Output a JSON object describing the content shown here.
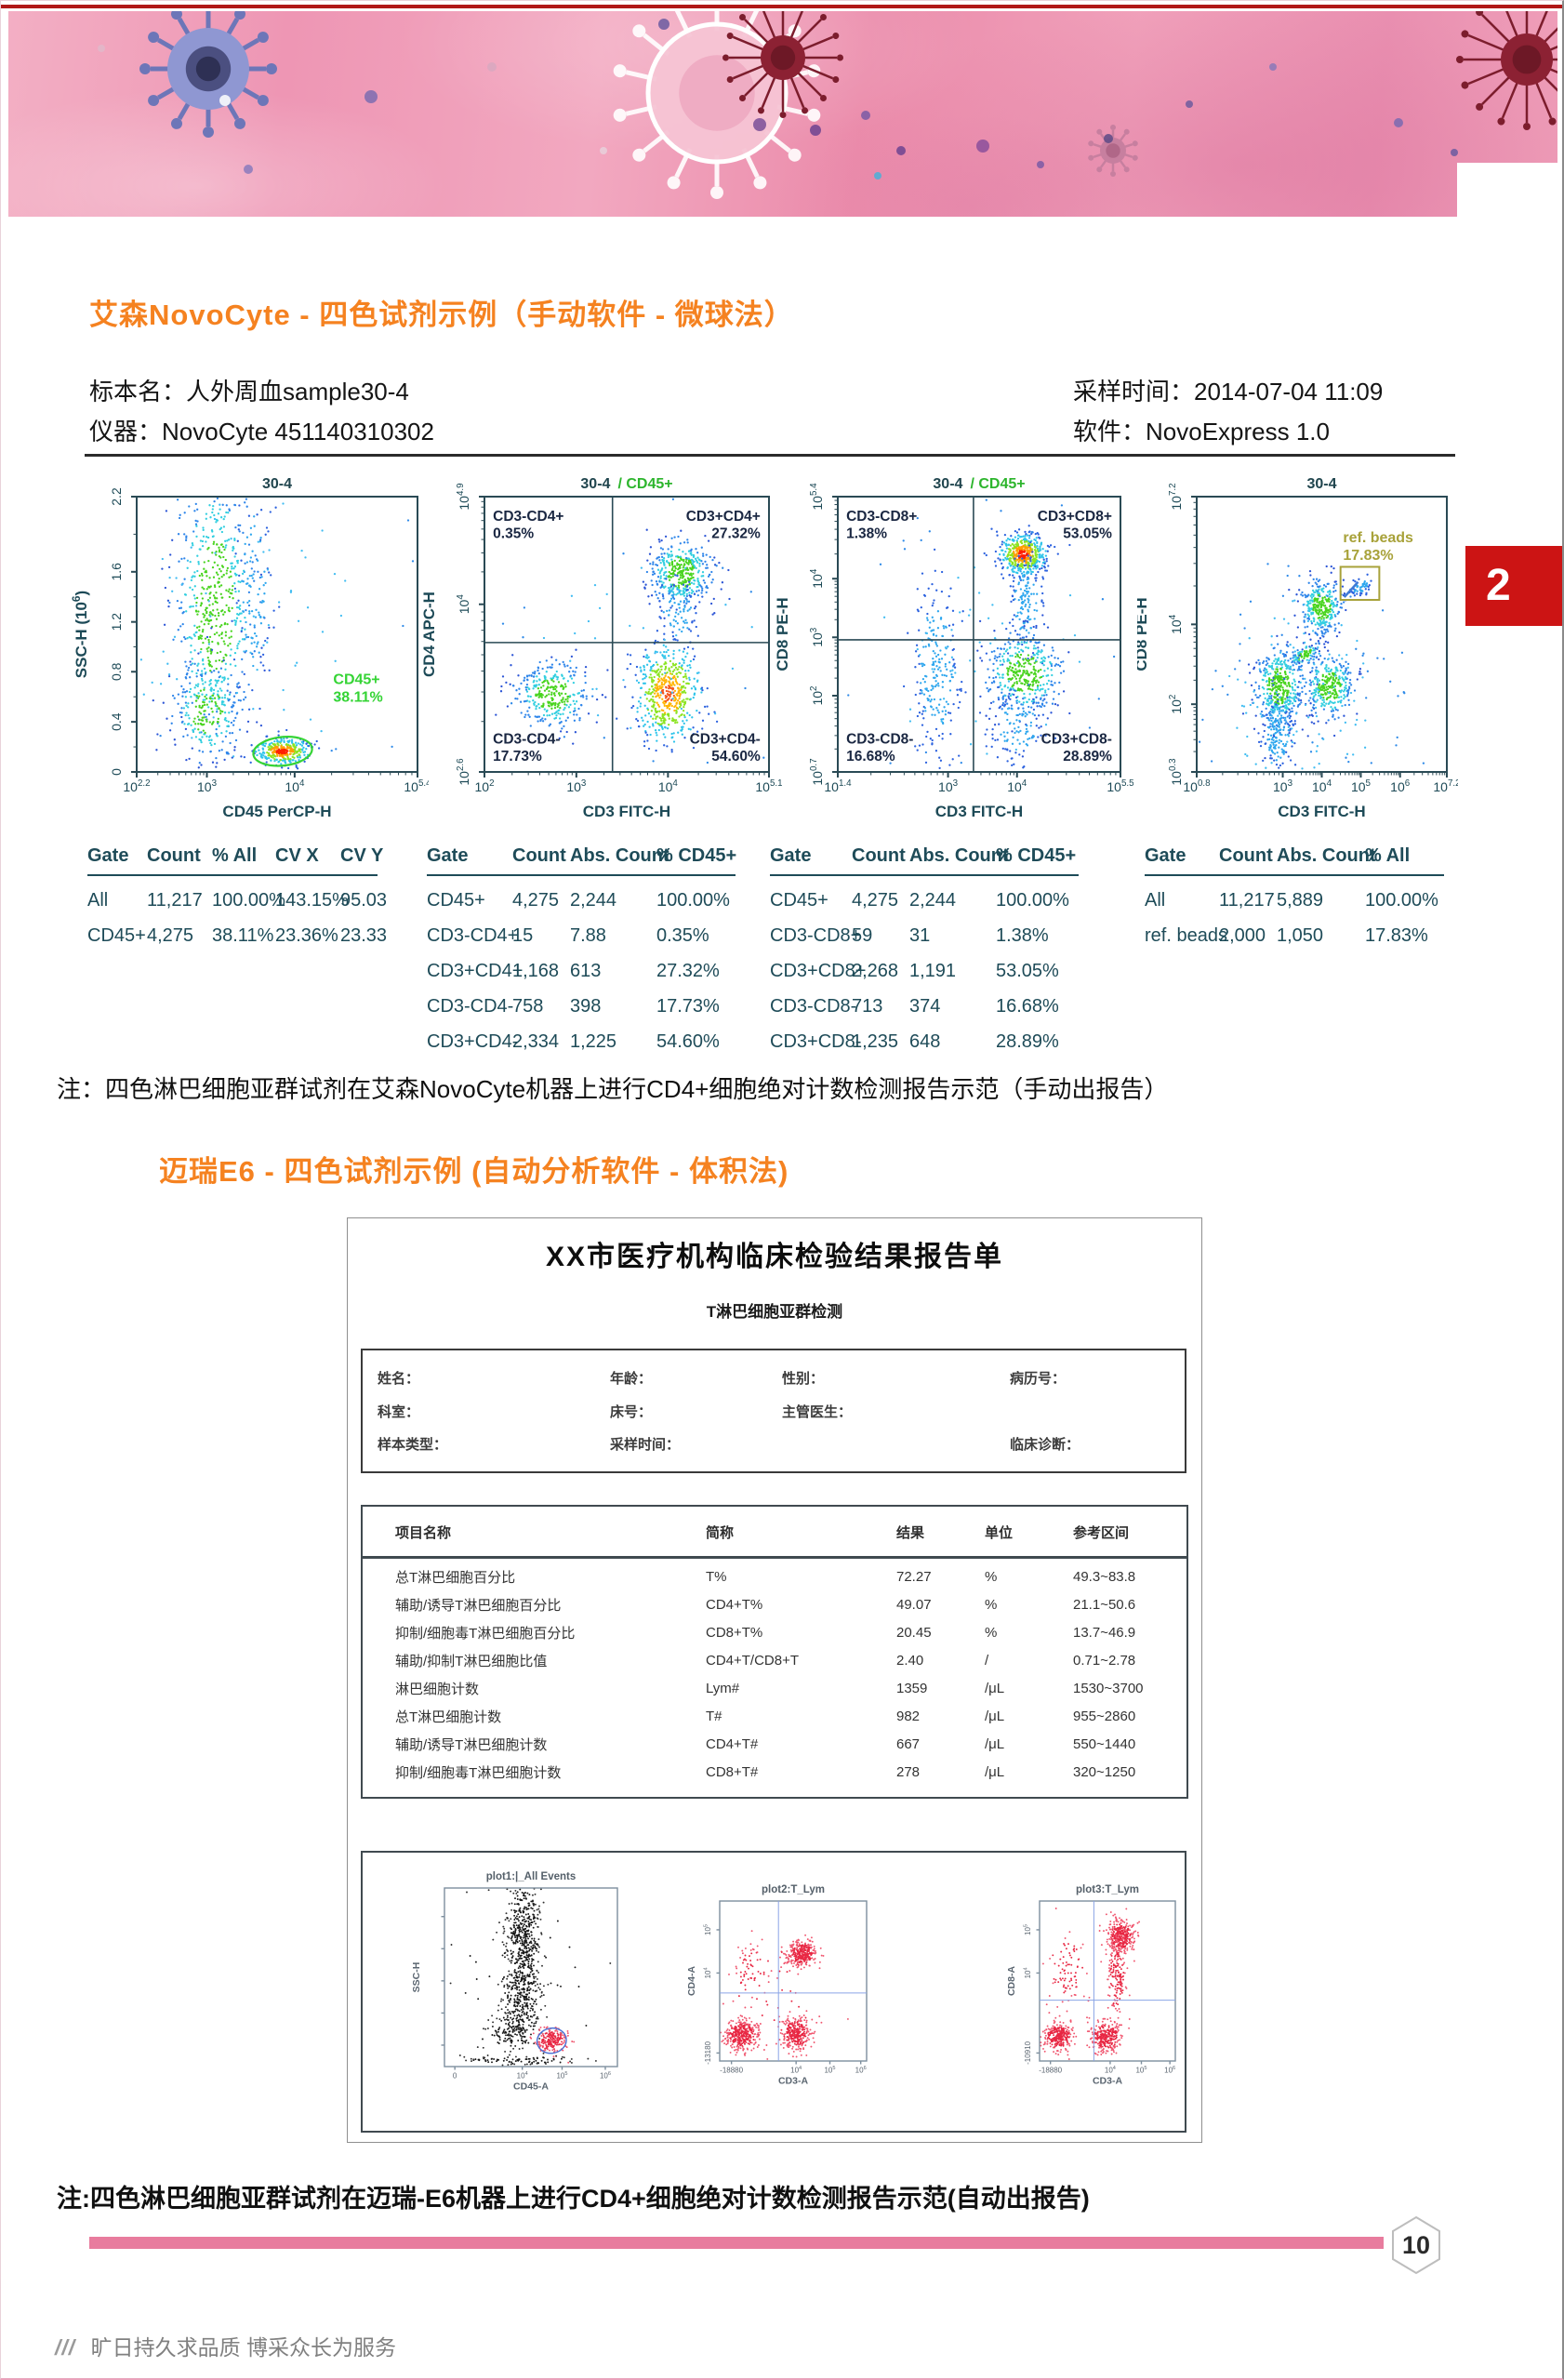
{
  "page": {
    "section1_title": "艾森NovoCyte - 四色试剂示例（手动软件 - 微球法）",
    "section2_title": "迈瑞E6 - 四色试剂示例 (自动分析软件 - 体积法)",
    "note1": "注：四色淋巴细胞亚群试剂在艾森NovoCyte机器上进行CD4+细胞绝对计数检测报告示范（手动出报告）",
    "note2": "注:四色淋巴细胞亚群试剂在迈瑞-E6机器上进行CD4+细胞绝对计数检测报告示范(自动出报告)",
    "page_number": "10",
    "chapter_tab": "2",
    "footer_slashes": "///",
    "footer_slogan": "旷日持久求品质 博采众长为服务"
  },
  "sample": {
    "specimen": "标本名：人外周血sample30-4",
    "instrument": "仪器：NovoCyte 451140310302",
    "sampling_time": "采样时间：2014-07-04 11:09",
    "software": "软件：NovoExpress 1.0"
  },
  "colors": {
    "accent_orange": "#f58220",
    "bar_pink": "#e87c9e",
    "tab_red": "#cc1414",
    "table_teal": "#1e4b58",
    "gate_green": "#35d435",
    "beads_olive": "#a8a23a"
  },
  "gate_tables": [
    {
      "columns": [
        "Gate",
        "Count",
        "% All",
        "CV X",
        "CV Y"
      ],
      "rows": [
        [
          "All",
          "11,217",
          "100.00%",
          "143.15%",
          "95.03"
        ],
        [
          "CD45+",
          "4,275",
          "38.11%",
          "23.36%",
          "23.33"
        ]
      ]
    },
    {
      "columns": [
        "Gate",
        "Count",
        "Abs. Count",
        "% CD45+"
      ],
      "rows": [
        [
          "CD45+",
          "4,275",
          "2,244",
          "100.00%"
        ],
        [
          "CD3-CD4+",
          "15",
          "7.88",
          "0.35%"
        ],
        [
          "CD3+CD4+",
          "1,168",
          "613",
          "27.32%"
        ],
        [
          "CD3-CD4-",
          "758",
          "398",
          "17.73%"
        ],
        [
          "CD3+CD4-",
          "2,334",
          "1,225",
          "54.60%"
        ]
      ]
    },
    {
      "columns": [
        "Gate",
        "Count",
        "Abs. Count",
        "% CD45+"
      ],
      "rows": [
        [
          "CD45+",
          "4,275",
          "2,244",
          "100.00%"
        ],
        [
          "CD3-CD8+",
          "59",
          "31",
          "1.38%"
        ],
        [
          "CD3+CD8+",
          "2,268",
          "1,191",
          "53.05%"
        ],
        [
          "CD3-CD8-",
          "713",
          "374",
          "16.68%"
        ],
        [
          "CD3+CD8-",
          "1,235",
          "648",
          "28.89%"
        ]
      ]
    },
    {
      "columns": [
        "Gate",
        "Count",
        "Abs. Count",
        "% All"
      ],
      "rows": [
        [
          "All",
          "11,217",
          "5,889",
          "100.00%"
        ],
        [
          "ref. beads",
          "2,000",
          "1,050",
          "17.83%"
        ]
      ]
    }
  ],
  "report": {
    "title": "XX市医疗机构临床检验结果报告单",
    "subtitle": "T淋巴细胞亚群检测",
    "patient_fields": [
      [
        "姓名：",
        "年龄：",
        "性别：",
        "病历号："
      ],
      [
        "科室：",
        "床号：",
        "主管医生：",
        ""
      ],
      [
        "样本类型：",
        "采样时间：",
        "",
        "临床诊断："
      ]
    ],
    "result_table": {
      "columns": [
        "项目名称",
        "简称",
        "结果",
        "单位",
        "参考区间"
      ],
      "rows": [
        [
          "总T淋巴细胞百分比",
          "T%",
          "72.27",
          "%",
          "49.3~83.8"
        ],
        [
          "辅助/诱导T淋巴细胞百分比",
          "CD4+T%",
          "49.07",
          "%",
          "21.1~50.6"
        ],
        [
          "抑制/细胞毒T淋巴细胞百分比",
          "CD8+T%",
          "20.45",
          "%",
          "13.7~46.9"
        ],
        [
          "辅助/抑制T淋巴细胞比值",
          "CD4+T/CD8+T",
          "2.40",
          "/",
          "0.71~2.78"
        ],
        [
          "淋巴细胞计数",
          "Lym#",
          "1359",
          "/μL",
          "1530~3700"
        ],
        [
          "总T淋巴细胞计数",
          "T#",
          "982",
          "/μL",
          "955~2860"
        ],
        [
          "辅助/诱导T淋巴细胞计数",
          "CD4+T#",
          "667",
          "/μL",
          "550~1440"
        ],
        [
          "抑制/细胞毒T淋巴细胞计数",
          "CD8+T#",
          "278",
          "/μL",
          "320~1250"
        ]
      ]
    }
  },
  "chart_data": [
    {
      "id": "novocyte-ssc-vs-cd45",
      "type": "scatter",
      "log": true,
      "ylinear": true,
      "title_parts": [
        {
          "text": "30-4",
          "color": "#20454e"
        }
      ],
      "xlabel": "CD45 PerCP-H",
      "ylabel": "SSC-H (10^6)",
      "xticks": [
        {
          "label": "10^2.2",
          "pos": 0.0
        },
        {
          "label": "10^3",
          "pos": 0.25
        },
        {
          "label": "10^4",
          "pos": 0.5625
        },
        {
          "label": "10^5.4",
          "pos": 1.0
        }
      ],
      "yticks": [
        {
          "label": "0",
          "pos": 0.0
        },
        {
          "label": "0.4",
          "pos": 0.182
        },
        {
          "label": "0.8",
          "pos": 0.364
        },
        {
          "label": "1.2",
          "pos": 0.545
        },
        {
          "label": "1.6",
          "pos": 0.727
        },
        {
          "label": "2.2",
          "pos": 1.0
        }
      ],
      "gates": [
        {
          "shape": "ellipse",
          "cx": 0.52,
          "cy": 0.925,
          "rx": 0.105,
          "ry": 0.052,
          "rot": -6,
          "color": "#35d435",
          "label_lines": [
            "CD45+",
            "38.11%"
          ],
          "lx": 0.7,
          "ly": 0.68,
          "label_color": "#35d435"
        }
      ],
      "clusters": [
        {
          "cx": 0.28,
          "cy": 0.4,
          "sx": 0.075,
          "sy": 0.26,
          "n": 600,
          "p": "coolgreen"
        },
        {
          "cx": 0.25,
          "cy": 0.78,
          "sx": 0.06,
          "sy": 0.09,
          "n": 220,
          "p": "coolgreen"
        },
        {
          "cx": 0.42,
          "cy": 0.35,
          "sx": 0.035,
          "sy": 0.22,
          "n": 120,
          "p": "cool"
        },
        {
          "cx": 0.52,
          "cy": 0.925,
          "sx": 0.05,
          "sy": 0.024,
          "n": 340,
          "p": "hot"
        },
        {
          "cx": 0.4,
          "cy": 0.5,
          "sx": 0.3,
          "sy": 0.35,
          "n": 100,
          "p": "sparse"
        }
      ]
    },
    {
      "id": "novocyte-cd4-vs-cd3",
      "type": "scatter",
      "log": true,
      "title_parts": [
        {
          "text": "30-4",
          "color": "#20454e"
        },
        {
          "text": "/ CD45+",
          "color": "#2db52d",
          "dx": 8
        }
      ],
      "xlabel": "CD3 FITC-H",
      "ylabel": "CD4 APC-H",
      "xticks": [
        {
          "label": "10^2",
          "pos": 0.0
        },
        {
          "label": "10^3",
          "pos": 0.323
        },
        {
          "label": "10^4",
          "pos": 0.645
        },
        {
          "label": "10^5.1",
          "pos": 1.0
        }
      ],
      "yticks": [
        {
          "label": "10^2.6",
          "pos": 0.0
        },
        {
          "label": "10^4",
          "pos": 0.609
        },
        {
          "label": "10^4.9",
          "pos": 1.0
        }
      ],
      "quad": {
        "vx": 0.45,
        "hy": 0.53
      },
      "quad_labels": [
        {
          "lines": [
            "CD3-CD4+",
            "0.35%"
          ],
          "x": 0.03,
          "y": 0.035,
          "anchor": "start"
        },
        {
          "lines": [
            "CD3+CD4+",
            "27.32%"
          ],
          "x": 0.97,
          "y": 0.035,
          "anchor": "end"
        },
        {
          "lines": [
            "CD3-CD4-",
            "17.73%"
          ],
          "x": 0.03,
          "y": 0.845,
          "anchor": "start"
        },
        {
          "lines": [
            "CD3+CD4-",
            "54.60%"
          ],
          "x": 0.97,
          "y": 0.845,
          "anchor": "end"
        }
      ],
      "clusters": [
        {
          "cx": 0.69,
          "cy": 0.275,
          "sx": 0.055,
          "sy": 0.06,
          "n": 400,
          "p": "coolgreen"
        },
        {
          "cx": 0.68,
          "cy": 0.42,
          "sx": 0.04,
          "sy": 0.07,
          "n": 90,
          "p": "cool"
        },
        {
          "cx": 0.24,
          "cy": 0.72,
          "sx": 0.065,
          "sy": 0.062,
          "n": 330,
          "p": "coolgreen"
        },
        {
          "cx": 0.645,
          "cy": 0.715,
          "sx": 0.055,
          "sy": 0.085,
          "n": 540,
          "p": "hotorange"
        },
        {
          "cx": 0.55,
          "cy": 0.55,
          "sx": 0.28,
          "sy": 0.22,
          "n": 70,
          "p": "sparse"
        }
      ]
    },
    {
      "id": "novocyte-cd8-vs-cd3",
      "type": "scatter",
      "log": true,
      "title_parts": [
        {
          "text": "30-4",
          "color": "#20454e"
        },
        {
          "text": "/ CD45+",
          "color": "#2db52d",
          "dx": 8
        }
      ],
      "xlabel": "CD3 FITC-H",
      "ylabel": "CD8 PE-H",
      "xticks": [
        {
          "label": "10^1.4",
          "pos": 0.0
        },
        {
          "label": "10^3",
          "pos": 0.39
        },
        {
          "label": "10^4",
          "pos": 0.634
        },
        {
          "label": "10^5.5",
          "pos": 1.0
        }
      ],
      "yticks": [
        {
          "label": "10^0.7",
          "pos": 0.0
        },
        {
          "label": "10^2",
          "pos": 0.277
        },
        {
          "label": "10^3",
          "pos": 0.489
        },
        {
          "label": "10^4",
          "pos": 0.702
        },
        {
          "label": "10^5.4",
          "pos": 1.0
        }
      ],
      "quad": {
        "vx": 0.48,
        "hy": 0.52
      },
      "quad_labels": [
        {
          "lines": [
            "CD3-CD8+",
            "1.38%"
          ],
          "x": 0.03,
          "y": 0.035,
          "anchor": "start"
        },
        {
          "lines": [
            "CD3+CD8+",
            "53.05%"
          ],
          "x": 0.97,
          "y": 0.035,
          "anchor": "end"
        },
        {
          "lines": [
            "CD3-CD8-",
            "16.68%"
          ],
          "x": 0.03,
          "y": 0.845,
          "anchor": "start"
        },
        {
          "lines": [
            "CD3+CD8-",
            "28.89%"
          ],
          "x": 0.97,
          "y": 0.845,
          "anchor": "end"
        }
      ],
      "clusters": [
        {
          "cx": 0.655,
          "cy": 0.21,
          "sx": 0.042,
          "sy": 0.038,
          "n": 480,
          "p": "hot"
        },
        {
          "cx": 0.665,
          "cy": 0.38,
          "sx": 0.032,
          "sy": 0.095,
          "n": 150,
          "p": "cool"
        },
        {
          "cx": 0.35,
          "cy": 0.62,
          "sx": 0.045,
          "sy": 0.17,
          "n": 230,
          "p": "cool"
        },
        {
          "cx": 0.66,
          "cy": 0.64,
          "sx": 0.068,
          "sy": 0.078,
          "n": 400,
          "p": "coolgreen"
        },
        {
          "cx": 0.635,
          "cy": 0.83,
          "sx": 0.05,
          "sy": 0.075,
          "n": 120,
          "p": "cool"
        },
        {
          "cx": 0.5,
          "cy": 0.55,
          "sx": 0.3,
          "sy": 0.28,
          "n": 80,
          "p": "sparse"
        }
      ]
    },
    {
      "id": "novocyte-ref-beads",
      "type": "scatter",
      "log": true,
      "title_parts": [
        {
          "text": "30-4",
          "color": "#20454e"
        }
      ],
      "xlabel": "CD3 FITC-H",
      "ylabel": "CD8 PE-H",
      "xticks": [
        {
          "label": "10^0.8",
          "pos": 0.0
        },
        {
          "label": "10^3",
          "pos": 0.344
        },
        {
          "label": "10^4",
          "pos": 0.5
        },
        {
          "label": "10^5",
          "pos": 0.656
        },
        {
          "label": "10^6",
          "pos": 0.813
        },
        {
          "label": "10^7.2",
          "pos": 1.0
        }
      ],
      "yticks": [
        {
          "label": "10^0.3",
          "pos": 0.0
        },
        {
          "label": "10^2",
          "pos": 0.246
        },
        {
          "label": "10^4",
          "pos": 0.536
        },
        {
          "label": "10^7.2",
          "pos": 1.0
        }
      ],
      "gates": [
        {
          "shape": "rect",
          "x": 0.575,
          "y": 0.255,
          "w": 0.155,
          "h": 0.12,
          "color": "#a8a23a",
          "label_lines": [
            "ref. beads",
            "17.83%"
          ],
          "lx": 0.585,
          "ly": 0.165,
          "label_color": "#a8a23a"
        }
      ],
      "extras": [
        {
          "x1": 0.59,
          "y1": 0.365,
          "x2": 0.645,
          "y2": 0.31,
          "color": "#3f7ad6",
          "w": 2.5
        }
      ],
      "clusters": [
        {
          "cx": 0.5,
          "cy": 0.4,
          "sx": 0.042,
          "sy": 0.05,
          "n": 320,
          "p": "coolgreen"
        },
        {
          "cx": 0.43,
          "cy": 0.575,
          "sx": 0.035,
          "sy": 0.016,
          "n": 90,
          "p": "coolgreen",
          "rot": -35
        },
        {
          "cx": 0.33,
          "cy": 0.69,
          "sx": 0.05,
          "sy": 0.072,
          "n": 430,
          "p": "coolgreen"
        },
        {
          "cx": 0.325,
          "cy": 0.86,
          "sx": 0.033,
          "sy": 0.08,
          "n": 170,
          "p": "cool"
        },
        {
          "cx": 0.53,
          "cy": 0.69,
          "sx": 0.05,
          "sy": 0.058,
          "n": 300,
          "p": "coolgreen"
        },
        {
          "cx": 0.655,
          "cy": 0.33,
          "sx": 0.026,
          "sy": 0.012,
          "n": 50,
          "p": "cool",
          "rot": -35
        },
        {
          "cx": 0.42,
          "cy": 0.62,
          "sx": 0.17,
          "sy": 0.17,
          "n": 110,
          "p": "sparse"
        },
        {
          "cx": 0.42,
          "cy": 0.78,
          "sx": 0.24,
          "sy": 0.18,
          "n": 80,
          "p": "sparse"
        }
      ]
    },
    {
      "id": "report-all-events",
      "type": "scatter",
      "log": false,
      "title_parts": [
        {
          "text": "plot1:|_All Events",
          "color": "#55606a"
        }
      ],
      "xlabel": "CD45-A",
      "ylabel": "SSC-H",
      "xticks": [
        {
          "label": "0",
          "pos": 0.06
        },
        {
          "label": "10^4",
          "pos": 0.45
        },
        {
          "label": "10^5",
          "pos": 0.68
        },
        {
          "label": "10^6",
          "pos": 0.93
        }
      ],
      "yticks": [
        {
          "label": "",
          "pos": 0.12
        },
        {
          "label": "",
          "pos": 0.3
        },
        {
          "label": "",
          "pos": 0.48
        },
        {
          "label": "",
          "pos": 0.66
        },
        {
          "label": "",
          "pos": 0.84
        }
      ],
      "gates": [
        {
          "shape": "ellipse",
          "cx": 0.62,
          "cy": 0.855,
          "rx": 0.085,
          "ry": 0.07,
          "rot": -10,
          "color": "#4a6fd4"
        }
      ],
      "clusters": [
        {
          "cx": 0.46,
          "cy": 0.3,
          "sx": 0.05,
          "sy": 0.2,
          "n": 550,
          "p": "black"
        },
        {
          "cx": 0.44,
          "cy": 0.62,
          "sx": 0.06,
          "sy": 0.1,
          "n": 230,
          "p": "black"
        },
        {
          "cx": 0.4,
          "cy": 0.8,
          "sx": 0.08,
          "sy": 0.06,
          "n": 140,
          "p": "black"
        },
        {
          "cx": 0.62,
          "cy": 0.855,
          "sx": 0.045,
          "sy": 0.035,
          "n": 200,
          "p": "red"
        },
        {
          "cx": 0.45,
          "cy": 0.965,
          "sx": 0.18,
          "sy": 0.012,
          "n": 90,
          "p": "black"
        },
        {
          "cx": 0.5,
          "cy": 0.5,
          "sx": 0.25,
          "sy": 0.3,
          "n": 60,
          "p": "black"
        }
      ]
    },
    {
      "id": "report-cd4-vs-cd3",
      "type": "scatter",
      "log": false,
      "title_parts": [
        {
          "text": "plot2:T_Lym",
          "color": "#55606a"
        }
      ],
      "xlabel": "CD3-A",
      "ylabel": "CD4-A",
      "xticks": [
        {
          "label": "-18880",
          "pos": 0.08
        },
        {
          "label": "10^4",
          "pos": 0.52
        },
        {
          "label": "10^5",
          "pos": 0.75
        },
        {
          "label": "10^6",
          "pos": 0.96
        }
      ],
      "yticks": [
        {
          "label": "-13180",
          "pos": 0.05
        },
        {
          "label": "10^4",
          "pos": 0.55
        },
        {
          "label": "10^5",
          "pos": 0.82
        }
      ],
      "quad": {
        "vx": 0.4,
        "hy": 0.575,
        "color": "#8aa4e6"
      },
      "clusters": [
        {
          "cx": 0.56,
          "cy": 0.33,
          "sx": 0.05,
          "sy": 0.042,
          "n": 300,
          "p": "red"
        },
        {
          "cx": 0.22,
          "cy": 0.44,
          "sx": 0.07,
          "sy": 0.09,
          "n": 60,
          "p": "red"
        },
        {
          "cx": 0.15,
          "cy": 0.84,
          "sx": 0.06,
          "sy": 0.05,
          "n": 350,
          "p": "red"
        },
        {
          "cx": 0.52,
          "cy": 0.83,
          "sx": 0.05,
          "sy": 0.055,
          "n": 300,
          "p": "red"
        },
        {
          "cx": 0.35,
          "cy": 0.6,
          "sx": 0.2,
          "sy": 0.2,
          "n": 45,
          "p": "red"
        }
      ]
    },
    {
      "id": "report-cd8-vs-cd3",
      "type": "scatter",
      "log": false,
      "title_parts": [
        {
          "text": "plot3:T_Lym",
          "color": "#55606a"
        }
      ],
      "xlabel": "CD3-A",
      "ylabel": "CD8-A",
      "xticks": [
        {
          "label": "-18880",
          "pos": 0.08
        },
        {
          "label": "10^4",
          "pos": 0.52
        },
        {
          "label": "10^5",
          "pos": 0.75
        },
        {
          "label": "10^6",
          "pos": 0.96
        }
      ],
      "yticks": [
        {
          "label": "-10910",
          "pos": 0.05
        },
        {
          "label": "10^4",
          "pos": 0.55
        },
        {
          "label": "10^5",
          "pos": 0.82
        }
      ],
      "quad": {
        "vx": 0.4,
        "hy": 0.62,
        "color": "#8aa4e6"
      },
      "clusters": [
        {
          "cx": 0.6,
          "cy": 0.22,
          "sx": 0.05,
          "sy": 0.055,
          "n": 330,
          "p": "red"
        },
        {
          "cx": 0.57,
          "cy": 0.47,
          "sx": 0.035,
          "sy": 0.14,
          "n": 170,
          "p": "red"
        },
        {
          "cx": 0.2,
          "cy": 0.42,
          "sx": 0.08,
          "sy": 0.12,
          "n": 90,
          "p": "red"
        },
        {
          "cx": 0.14,
          "cy": 0.85,
          "sx": 0.055,
          "sy": 0.045,
          "n": 280,
          "p": "red"
        },
        {
          "cx": 0.49,
          "cy": 0.85,
          "sx": 0.06,
          "sy": 0.05,
          "n": 300,
          "p": "red"
        }
      ]
    }
  ]
}
